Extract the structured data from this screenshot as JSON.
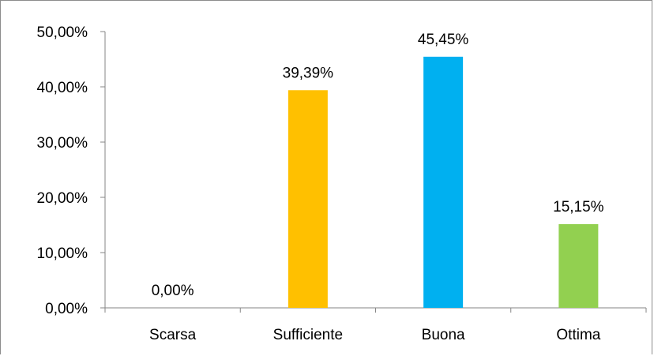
{
  "chart_data": {
    "type": "bar",
    "categories": [
      "Scarsa",
      "Sufficiente",
      "Buona",
      "Ottima"
    ],
    "values": [
      0.0,
      39.39,
      45.45,
      15.15
    ],
    "data_labels": [
      "0,00%",
      "39,39%",
      "45,45%",
      "15,15%"
    ],
    "colors": [
      "#4472c4",
      "#ffc000",
      "#00b0f0",
      "#92d050"
    ],
    "ylim": [
      0,
      50
    ],
    "yticks": [
      0,
      10,
      20,
      30,
      40,
      50
    ],
    "ytick_labels": [
      "0,00%",
      "10,00%",
      "20,00%",
      "30,00%",
      "40,00%",
      "50,00%"
    ],
    "grid": false,
    "legend": "none"
  }
}
